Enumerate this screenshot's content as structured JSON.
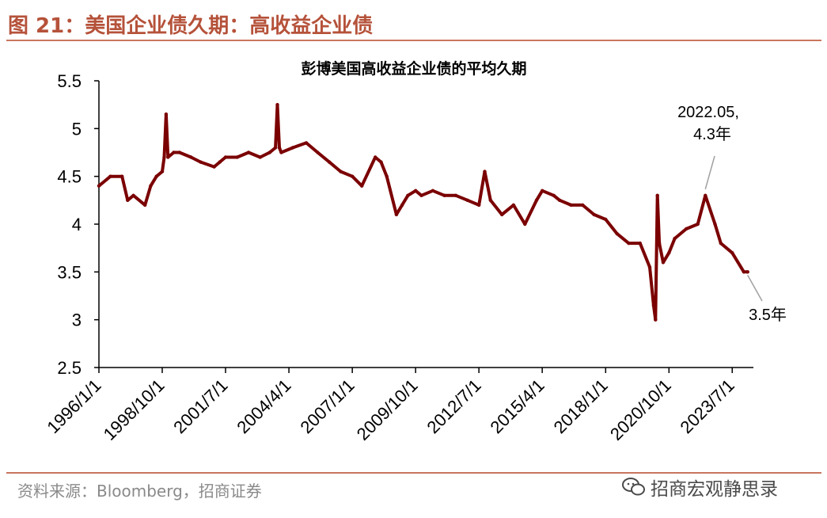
{
  "header": {
    "figure_title": "图 21：美国企业债久期：高收益企业债"
  },
  "footer": {
    "source": "资料来源：Bloomberg，招商证券",
    "watermark_text": "招商宏观静思录",
    "watermark_icon": "wechat-icon"
  },
  "colors": {
    "series": "#7b0000",
    "title_accent": "#b5523a",
    "rule": "#c8765e"
  },
  "chart_data": {
    "type": "line",
    "title": "彭博美国高收益企业债的平均久期",
    "xlabel": "",
    "ylabel": "",
    "ylim": [
      2.5,
      5.5
    ],
    "yticks": [
      "5.5",
      "5",
      "4.5",
      "4",
      "3.5",
      "3",
      "2.5"
    ],
    "xticks": [
      "1996/1/1",
      "1998/10/1",
      "2001/7/1",
      "2004/4/1",
      "2007/1/1",
      "2009/10/1",
      "2012/7/1",
      "2015/4/1",
      "2018/1/1",
      "2020/10/1",
      "2023/7/1"
    ],
    "xlim": [
      "1996/1/1",
      "2024/6/1"
    ],
    "grid": false,
    "legend": "none",
    "annotations": [
      {
        "text_lines": [
          "2022.05,",
          "4.3年"
        ],
        "x": "2022/5/1",
        "y": 4.3
      },
      {
        "text_lines": [
          "3.5年"
        ],
        "x": "2024/3/1",
        "y": 3.5
      }
    ],
    "series": [
      {
        "x": [
          "1996/1/1",
          "1996/7/1",
          "1997/1/1",
          "1997/4/1",
          "1997/7/1",
          "1998/1/1",
          "1998/4/1",
          "1998/7/1",
          "1998/10/1",
          "1998/11/1",
          "1998/12/1",
          "1999/1/1",
          "1999/4/1",
          "1999/7/1",
          "2000/1/1",
          "2000/6/1",
          "2001/1/1",
          "2001/4/1",
          "2001/7/1",
          "2002/1/1",
          "2002/7/1",
          "2003/1/1",
          "2003/6/1",
          "2003/9/1",
          "2003/10/1",
          "2003/11/1",
          "2003/12/1",
          "2004/6/1",
          "2005/1/1",
          "2005/7/1",
          "2006/1/1",
          "2006/7/1",
          "2007/1/1",
          "2007/6/1",
          "2008/1/1",
          "2008/4/1",
          "2008/7/1",
          "2008/12/1",
          "2009/3/1",
          "2009/6/1",
          "2009/10/1",
          "2010/1/1",
          "2010/7/1",
          "2011/1/1",
          "2011/7/1",
          "2012/1/1",
          "2012/7/1",
          "2012/10/1",
          "2013/1/1",
          "2013/7/1",
          "2014/1/1",
          "2014/7/1",
          "2015/1/1",
          "2015/4/1",
          "2015/10/1",
          "2016/1/1",
          "2016/7/1",
          "2017/1/1",
          "2017/7/1",
          "2018/1/1",
          "2018/7/1",
          "2019/1/1",
          "2019/7/1",
          "2019/12/1",
          "2020/2/1",
          "2020/3/1",
          "2020/4/1",
          "2020/5/1",
          "2020/7/1",
          "2020/10/1",
          "2021/1/1",
          "2021/7/1",
          "2022/1/1",
          "2022/5/1",
          "2022/10/1",
          "2023/1/1",
          "2023/7/1",
          "2024/1/1",
          "2024/3/1"
        ],
        "values": [
          4.4,
          4.5,
          4.5,
          4.25,
          4.3,
          4.2,
          4.4,
          4.5,
          4.55,
          4.7,
          5.15,
          4.7,
          4.75,
          4.75,
          4.7,
          4.65,
          4.6,
          4.65,
          4.7,
          4.7,
          4.75,
          4.7,
          4.75,
          4.8,
          5.25,
          4.8,
          4.75,
          4.8,
          4.85,
          4.75,
          4.65,
          4.55,
          4.5,
          4.4,
          4.7,
          4.65,
          4.5,
          4.1,
          4.2,
          4.3,
          4.35,
          4.3,
          4.35,
          4.3,
          4.3,
          4.25,
          4.2,
          4.55,
          4.25,
          4.1,
          4.2,
          4.0,
          4.25,
          4.35,
          4.3,
          4.25,
          4.2,
          4.2,
          4.1,
          4.05,
          3.9,
          3.8,
          3.8,
          3.55,
          3.15,
          3.0,
          4.3,
          3.8,
          3.6,
          3.7,
          3.85,
          3.95,
          4.0,
          4.3,
          4.0,
          3.8,
          3.7,
          3.5,
          3.5
        ]
      }
    ]
  }
}
